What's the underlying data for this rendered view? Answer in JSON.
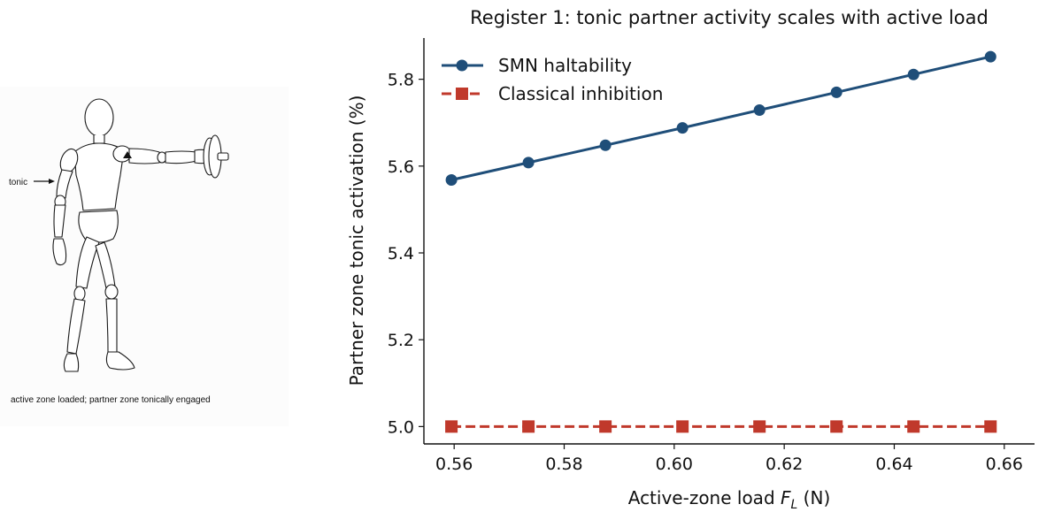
{
  "figure_panel": {
    "arrow_label": "tonic",
    "caption": "active zone loaded; partner zone tonically engaged"
  },
  "chart_data": {
    "type": "line",
    "title": "Register 1: tonic partner activity scales with active load",
    "xlabel_main": "Active-zone load ",
    "xlabel_var": "F",
    "xlabel_sub": "L",
    "xlabel_unit": " (N)",
    "ylabel": "Partner zone tonic activation (%)",
    "xlim": [
      0.5545,
      0.6655
    ],
    "ylim": [
      4.96,
      5.895
    ],
    "xticks": [
      0.56,
      0.58,
      0.6,
      0.62,
      0.64,
      0.66
    ],
    "xtick_labels": [
      "0.56",
      "0.58",
      "0.60",
      "0.62",
      "0.64",
      "0.66"
    ],
    "yticks": [
      5.0,
      5.2,
      5.4,
      5.6,
      5.8
    ],
    "ytick_labels": [
      "5.0",
      "5.2",
      "5.4",
      "5.6",
      "5.8"
    ],
    "x": [
      0.5595,
      0.5735,
      0.5875,
      0.6015,
      0.6155,
      0.6295,
      0.6435,
      0.6575
    ],
    "series": [
      {
        "name": "SMN haltability",
        "values": [
          5.568,
          5.608,
          5.648,
          5.688,
          5.729,
          5.77,
          5.811,
          5.852
        ],
        "color": "#1f4e79",
        "marker": "circle",
        "linestyle": "solid"
      },
      {
        "name": "Classical inhibition",
        "values": [
          5.0,
          5.0,
          5.0,
          5.0,
          5.0,
          5.0,
          5.0,
          5.0
        ],
        "color": "#c0392b",
        "marker": "square",
        "linestyle": "dashed"
      }
    ],
    "legend_position": "top-left",
    "grid": false
  }
}
